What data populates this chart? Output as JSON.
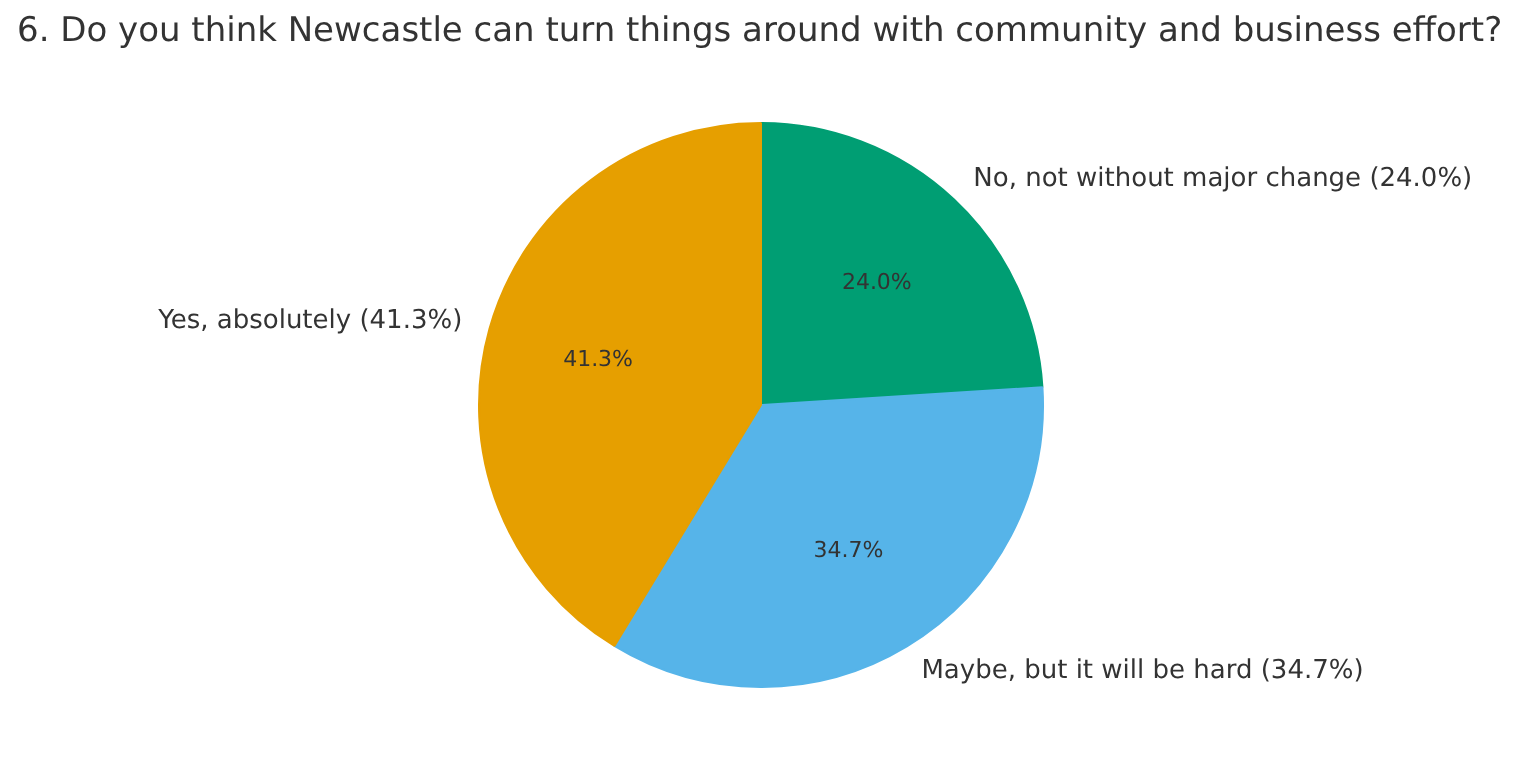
{
  "chart_data": {
    "type": "pie",
    "title": "6. Do you think Newcastle can turn things around with community and business effort?",
    "categories": [
      "No, not without major change (24.0%)",
      "Maybe, but it will be hard (34.7%)",
      "Yes, absolutely (41.3%)"
    ],
    "values": [
      24.0,
      34.7,
      41.3
    ],
    "colors": [
      "#009e73",
      "#56b4e9",
      "#e69f00"
    ],
    "value_labels": [
      "24.0%",
      "34.7%",
      "41.3%"
    ]
  }
}
